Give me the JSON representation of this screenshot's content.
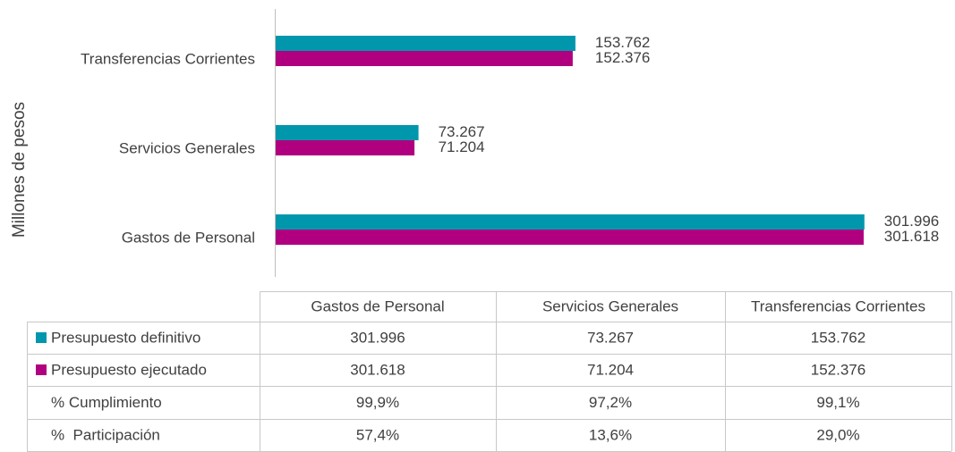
{
  "chart_data": {
    "type": "bar",
    "orientation": "horizontal",
    "y_axis_label": "Millones de pesos",
    "categories": [
      "Gastos de Personal",
      "Servicios Generales",
      "Transferencias Corrientes"
    ],
    "series": [
      {
        "name": "Presupuesto definitivo",
        "color": "#0097ad",
        "values": [
          301996,
          73267,
          153762
        ],
        "value_labels": [
          "301.996",
          "73.267",
          "153.762"
        ]
      },
      {
        "name": "Presupuesto ejecutado",
        "color": "#b0007f",
        "values": [
          301618,
          71204,
          152376
        ],
        "value_labels": [
          "301.618",
          "71.204",
          "152.376"
        ]
      }
    ],
    "xlim": [
      0,
      320000
    ],
    "table_rows": [
      {
        "label": "% Cumplimiento",
        "values": [
          "99,9%",
          "97,2%",
          "99,1%"
        ]
      },
      {
        "label": "%  Participación",
        "values": [
          "57,4%",
          "13,6%",
          "29,0%"
        ]
      }
    ]
  }
}
